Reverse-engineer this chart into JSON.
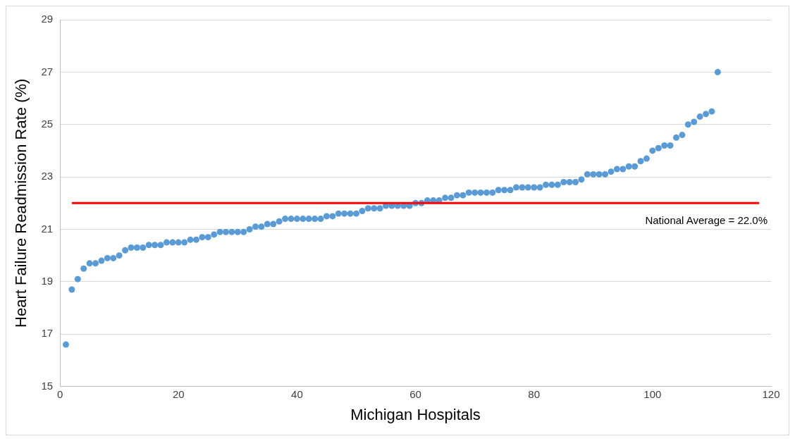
{
  "chart_data": {
    "type": "scatter",
    "xlabel": "Michigan Hospitals",
    "ylabel": "Heart Failure Readmission Rate (%)",
    "x": [
      1,
      2,
      3,
      4,
      5,
      6,
      7,
      8,
      9,
      10,
      11,
      12,
      13,
      14,
      15,
      16,
      17,
      18,
      19,
      20,
      21,
      22,
      23,
      24,
      25,
      26,
      27,
      28,
      29,
      30,
      31,
      32,
      33,
      34,
      35,
      36,
      37,
      38,
      39,
      40,
      41,
      42,
      43,
      44,
      45,
      46,
      47,
      48,
      49,
      50,
      51,
      52,
      53,
      54,
      55,
      56,
      57,
      58,
      59,
      60,
      61,
      62,
      63,
      64,
      65,
      66,
      67,
      68,
      69,
      70,
      71,
      72,
      73,
      74,
      75,
      76,
      77,
      78,
      79,
      80,
      81,
      82,
      83,
      84,
      85,
      86,
      87,
      88,
      89,
      90,
      91,
      92,
      93,
      94,
      95,
      96,
      97,
      98,
      99,
      100,
      101,
      102,
      103,
      104,
      105,
      106,
      107,
      108,
      109,
      110,
      111
    ],
    "series": [
      {
        "color": "#5b9bd5",
        "values": [
          16.6,
          18.7,
          19.1,
          19.5,
          19.7,
          19.7,
          19.8,
          19.9,
          19.9,
          20.0,
          20.2,
          20.3,
          20.3,
          20.3,
          20.4,
          20.4,
          20.4,
          20.5,
          20.5,
          20.5,
          20.5,
          20.6,
          20.6,
          20.7,
          20.7,
          20.8,
          20.9,
          20.9,
          20.9,
          20.9,
          20.9,
          21.0,
          21.1,
          21.1,
          21.2,
          21.2,
          21.3,
          21.4,
          21.4,
          21.4,
          21.4,
          21.4,
          21.4,
          21.4,
          21.5,
          21.5,
          21.6,
          21.6,
          21.6,
          21.6,
          21.7,
          21.8,
          21.8,
          21.8,
          21.9,
          21.9,
          21.9,
          21.9,
          21.9,
          22.0,
          22.0,
          22.1,
          22.1,
          22.1,
          22.2,
          22.2,
          22.3,
          22.3,
          22.4,
          22.4,
          22.4,
          22.4,
          22.4,
          22.5,
          22.5,
          22.5,
          22.6,
          22.6,
          22.6,
          22.6,
          22.6,
          22.7,
          22.7,
          22.7,
          22.8,
          22.8,
          22.8,
          22.9,
          23.1,
          23.1,
          23.1,
          23.1,
          23.2,
          23.3,
          23.3,
          23.4,
          23.4,
          23.6,
          23.7,
          24.0,
          24.1,
          24.2,
          24.2,
          24.5,
          24.6,
          25.0,
          25.1,
          25.3,
          25.4,
          25.5,
          27.0
        ]
      }
    ],
    "xlim": [
      0,
      120
    ],
    "xticks": [
      0,
      20,
      40,
      60,
      80,
      100,
      120
    ],
    "ylim": [
      15,
      29
    ],
    "yticks": [
      15,
      17,
      19,
      21,
      23,
      25,
      27,
      29
    ],
    "grid": "y",
    "legend": false,
    "marker": "circle",
    "ref_lines": [
      {
        "axis": "y",
        "value": 22.0,
        "label": "National Average = 22.0%",
        "color": "#ff0000"
      }
    ]
  }
}
